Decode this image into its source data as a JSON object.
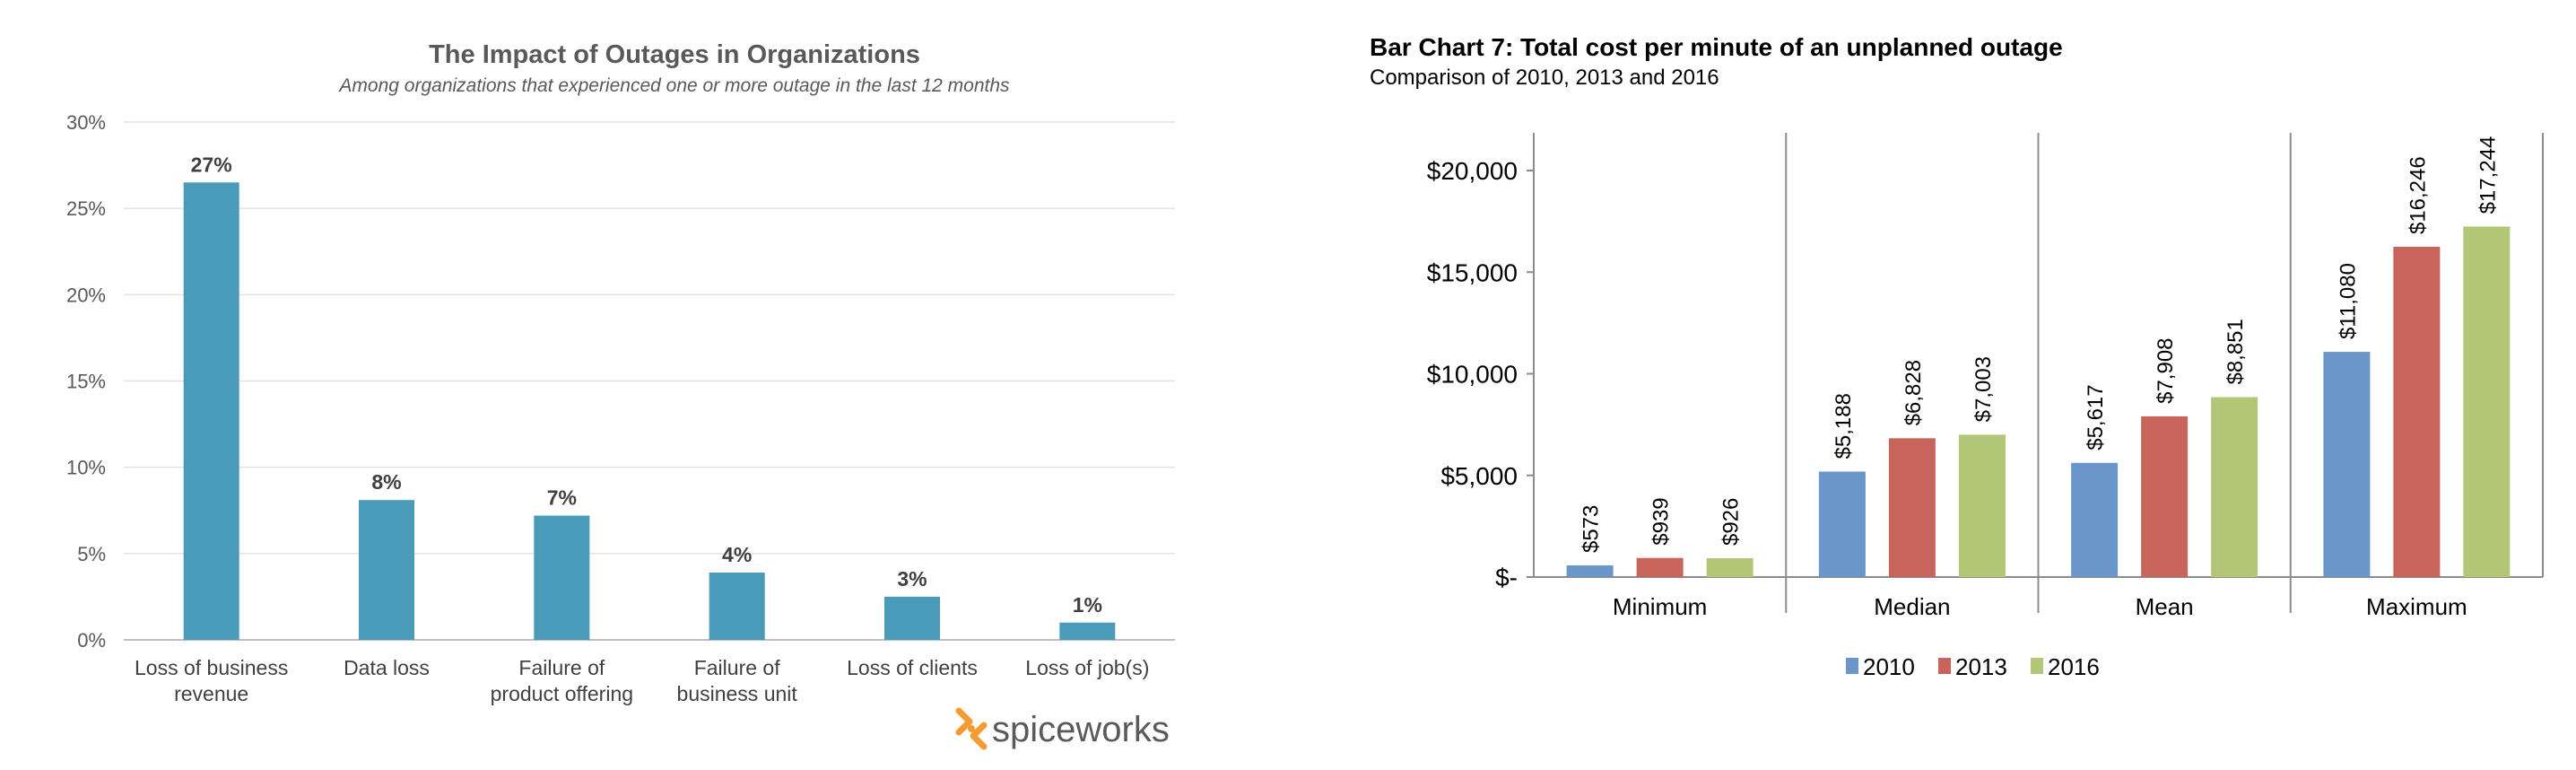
{
  "chart_data": [
    {
      "type": "bar",
      "title": "The Impact of Outages in Organizations",
      "subtitle": "Among organizations that experienced one or more outage in the last 12 months",
      "categories": [
        [
          "Loss of business",
          "revenue"
        ],
        [
          "Data loss"
        ],
        [
          "Failure of",
          "product offering"
        ],
        [
          "Failure of",
          "business unit"
        ],
        [
          "Loss of clients"
        ],
        [
          "Loss of job(s)"
        ]
      ],
      "values": [
        26.5,
        8.1,
        7.2,
        3.9,
        2.5,
        1.0
      ],
      "data_labels": [
        "27%",
        "8%",
        "7%",
        "4%",
        "3%",
        "1%"
      ],
      "y_ticks": [
        "0%",
        "5%",
        "10%",
        "15%",
        "20%",
        "25%",
        "30%"
      ],
      "ylim": [
        0,
        30
      ],
      "grid": true,
      "bar_color": "#4a9aba",
      "brand": "spiceworks"
    },
    {
      "type": "bar",
      "title": "Bar Chart 7: Total cost per minute of an unplanned outage",
      "subtitle": "Comparison of 2010, 2013 and 2016",
      "categories": [
        "Minimum",
        "Median",
        "Mean",
        "Maximum"
      ],
      "series": [
        {
          "name": "2010",
          "color": "#6a96c9",
          "values": [
            573,
            5188,
            5617,
            11080
          ],
          "labels": [
            "$573",
            "$5,188",
            "$5,617",
            "$11,080"
          ]
        },
        {
          "name": "2013",
          "color": "#c8645c",
          "values": [
            939,
            6828,
            7908,
            16246
          ],
          "labels": [
            "$939",
            "$6,828",
            "$7,908",
            "$16,246"
          ]
        },
        {
          "name": "2016",
          "color": "#b1c676",
          "values": [
            926,
            7003,
            8851,
            17244
          ],
          "labels": [
            "$926",
            "$7,003",
            "$8,851",
            "$17,244"
          ]
        }
      ],
      "y_ticks": [
        "$-",
        "$5,000",
        "$10,000",
        "$15,000",
        "$20,000"
      ],
      "ylim": [
        0,
        20000
      ],
      "grid": false,
      "legend_position": "bottom"
    }
  ]
}
